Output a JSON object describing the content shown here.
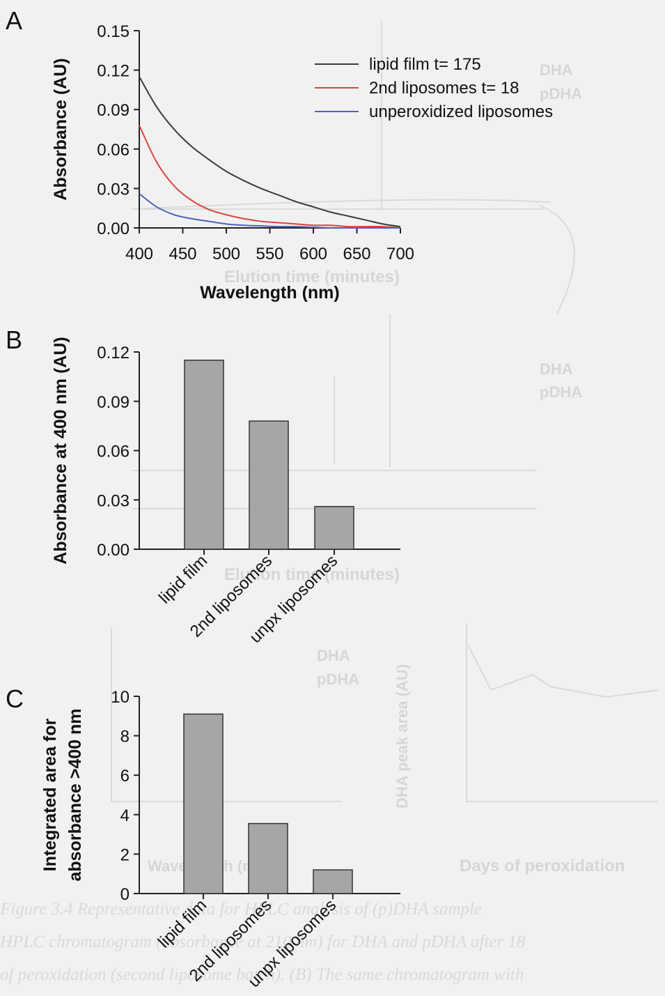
{
  "chart_data": [
    {
      "panel": "A",
      "type": "line",
      "xlabel": "Wavelength (nm)",
      "ylabel": "Absorbance (AU)",
      "xlim": [
        400,
        700
      ],
      "ylim": [
        0,
        0.15
      ],
      "xticks": [
        "400",
        "450",
        "500",
        "550",
        "600",
        "650",
        "700"
      ],
      "yticks": [
        "0.00",
        "0.03",
        "0.06",
        "0.09",
        "0.12",
        "0.15"
      ],
      "legend_position": "top-right",
      "series": [
        {
          "name": "lipid film t= 175",
          "color": "#3a3a3a",
          "x": [
            400,
            420,
            440,
            460,
            480,
            500,
            520,
            540,
            560,
            580,
            600,
            620,
            640,
            660,
            680,
            700
          ],
          "values": [
            0.115,
            0.092,
            0.075,
            0.062,
            0.052,
            0.043,
            0.036,
            0.03,
            0.025,
            0.02,
            0.016,
            0.012,
            0.009,
            0.006,
            0.003,
            0.001
          ]
        },
        {
          "name": "2nd liposomes t= 18",
          "color": "#d9443c",
          "x": [
            400,
            420,
            440,
            460,
            480,
            500,
            520,
            540,
            560,
            580,
            600,
            620,
            640,
            660,
            680,
            700
          ],
          "values": [
            0.078,
            0.05,
            0.032,
            0.021,
            0.014,
            0.01,
            0.007,
            0.005,
            0.004,
            0.003,
            0.002,
            0.002,
            0.001,
            0.001,
            0.001,
            0.0
          ]
        },
        {
          "name": "unperoxidized liposomes",
          "color": "#4a62b8",
          "x": [
            400,
            420,
            440,
            460,
            480,
            500,
            520,
            540,
            560,
            580,
            600,
            620,
            640,
            660,
            680,
            700
          ],
          "values": [
            0.026,
            0.016,
            0.01,
            0.007,
            0.005,
            0.003,
            0.002,
            0.0015,
            0.001,
            0.001,
            0.0005,
            0.0,
            0.0,
            0.0,
            0.0,
            0.0
          ]
        }
      ]
    },
    {
      "panel": "B",
      "type": "bar",
      "ylabel": "Absorbance at 400 nm (AU)",
      "ylim": [
        0,
        0.12
      ],
      "yticks": [
        "0.00",
        "0.03",
        "0.06",
        "0.09",
        "0.12"
      ],
      "categories": [
        "lipid film",
        "2nd liposomes",
        "unpx liposomes"
      ],
      "values": [
        0.115,
        0.078,
        0.026
      ],
      "bar_color": "#a6a6a8"
    },
    {
      "panel": "C",
      "type": "bar",
      "ylabel": [
        "Integrated area for",
        "absorbance >400 nm"
      ],
      "ylim": [
        0,
        10
      ],
      "yticks": [
        "0",
        "2",
        "4",
        "6",
        "8",
        "10"
      ],
      "categories": [
        "lipid film",
        "2nd liposomes",
        "unpx liposomes"
      ],
      "values": [
        9.1,
        3.55,
        1.2
      ],
      "bar_color": "#a6a6a8"
    }
  ],
  "panel_letters": [
    "A",
    "B",
    "C"
  ],
  "background": {
    "ghost_texts": [
      "Elution time (minutes)",
      "Elution time (minutes)",
      "Wavelength (nm)",
      "Days of peroxidation",
      "DHA peak area (AU)",
      "DHA",
      "pDHA",
      "DHA",
      "pDHA",
      "DHA",
      "pDHA"
    ],
    "ghost_caption": [
      "Figure 3.4 Representative data for HPLC analysis of (p)DHA sample",
      "HPLC chromatogram (absorbance at 210 nm) for DHA and pDHA after 18",
      "of peroxidation (second liposome batch). (B) The same chromatogram with"
    ]
  }
}
